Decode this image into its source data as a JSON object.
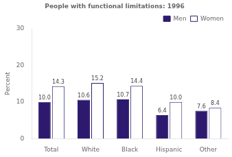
{
  "chart_data": {
    "type": "bar",
    "title": "People with functional limitations: 1996",
    "categories": [
      "Total",
      "White",
      "Black",
      "Hispanic",
      "Other"
    ],
    "series": [
      {
        "name": "Men",
        "color": "#2d1a6e",
        "values": [
          10.0,
          10.6,
          10.7,
          6.4,
          7.6
        ],
        "value_labels": [
          "10.0",
          "10.6",
          "10.7",
          "6.4",
          "7.6"
        ]
      },
      {
        "name": "Women",
        "color": "#ffffff",
        "values": [
          14.3,
          15.2,
          14.4,
          10.0,
          8.4
        ],
        "value_labels": [
          "14.3",
          "15.2",
          "14.4",
          "10.0",
          "8.4"
        ]
      }
    ],
    "ylabel": "Percent",
    "ylim": [
      0,
      30
    ],
    "yticks": [
      0,
      10,
      20,
      30
    ],
    "grid": false,
    "legend": "upper right",
    "data_labels": true
  }
}
